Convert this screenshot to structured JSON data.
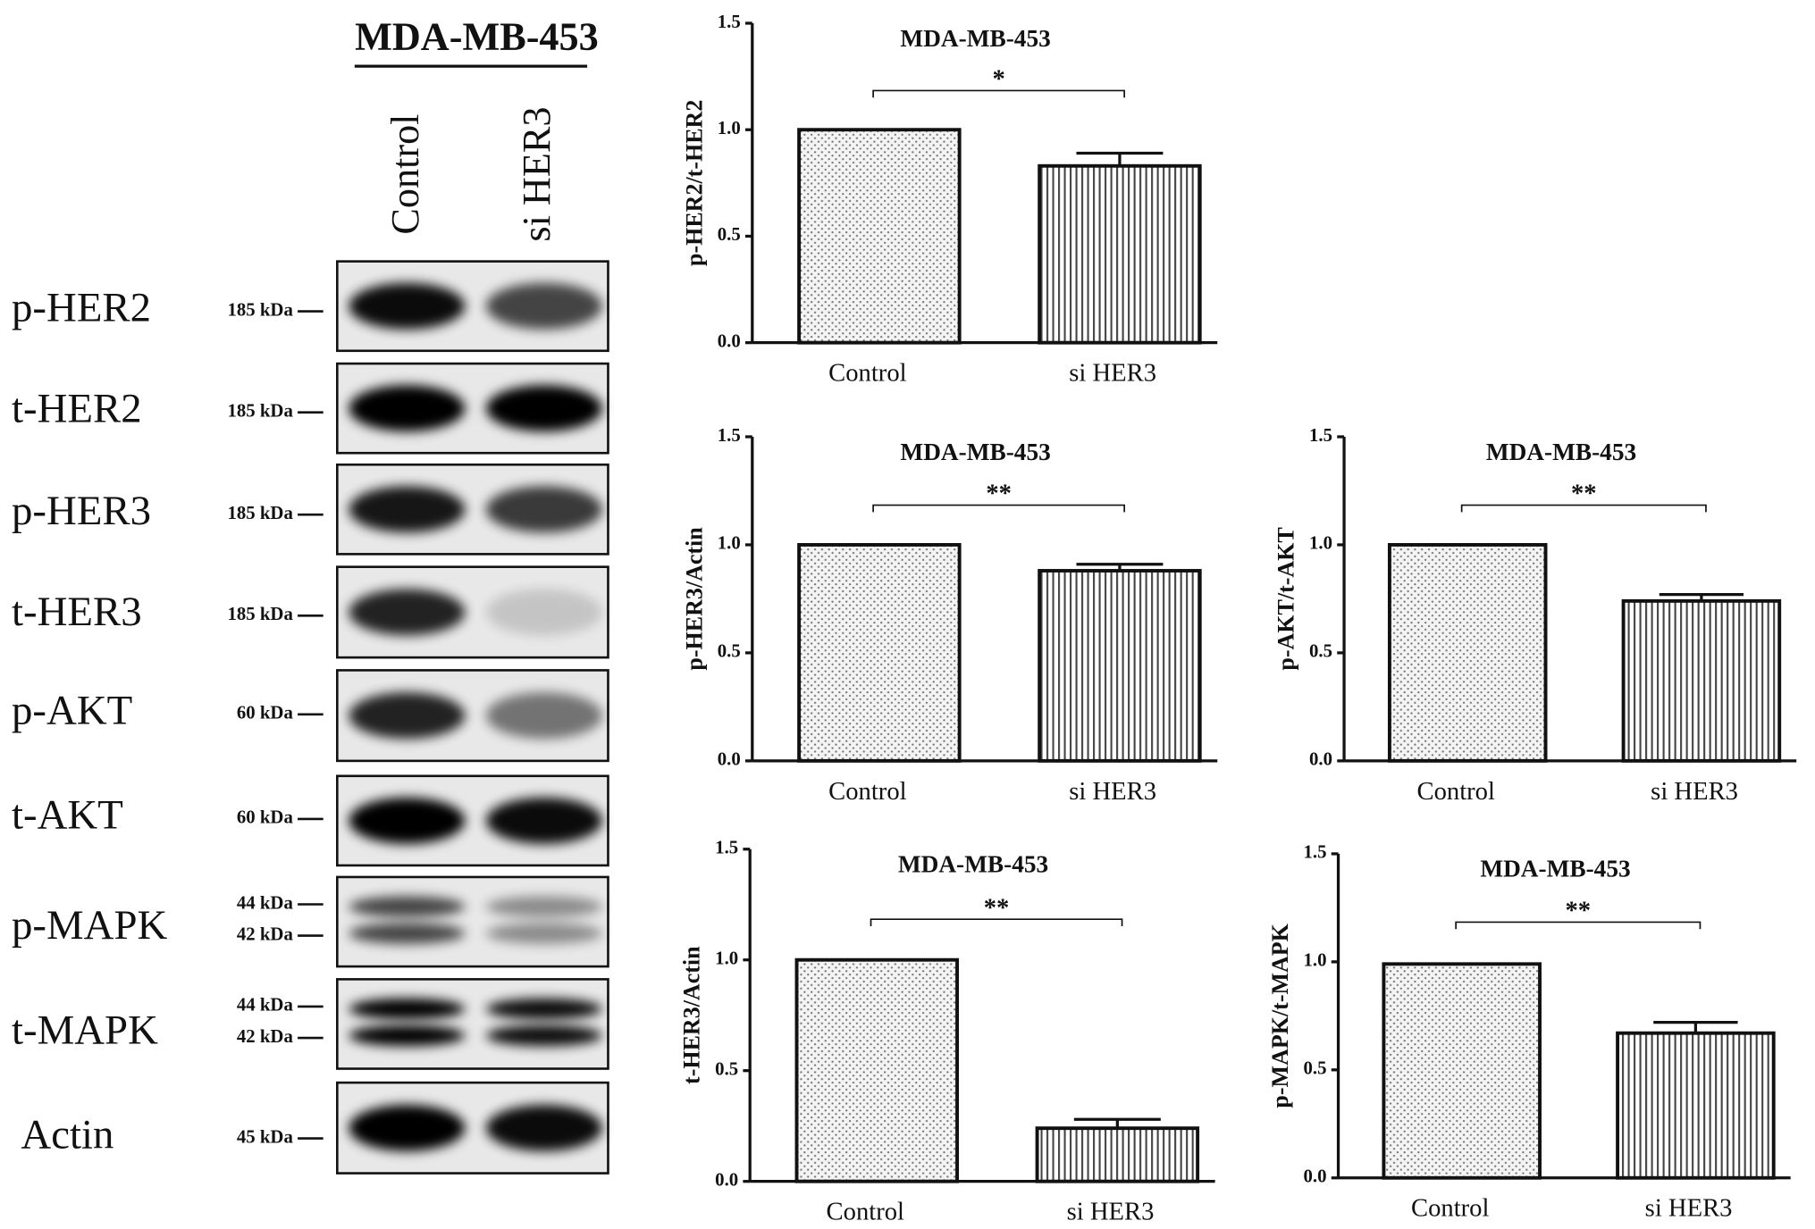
{
  "blot": {
    "title": "MDA-MB-453",
    "lanes": [
      "Control",
      "si HER3"
    ],
    "rows": [
      {
        "label": "p-HER2",
        "kda": [
          "185 kDa"
        ]
      },
      {
        "label": "t-HER2",
        "kda": [
          "185 kDa"
        ]
      },
      {
        "label": "p-HER3",
        "kda": [
          "185 kDa"
        ]
      },
      {
        "label": "t-HER3",
        "kda": [
          "185 kDa"
        ]
      },
      {
        "label": "p-AKT",
        "kda": [
          "60 kDa"
        ]
      },
      {
        "label": "t-AKT",
        "kda": [
          "60 kDa"
        ]
      },
      {
        "label": "p-MAPK",
        "kda": [
          "44 kDa",
          "42 kDa"
        ]
      },
      {
        "label": "t-MAPK",
        "kda": [
          "44 kDa",
          "42 kDa"
        ]
      },
      {
        "label": "Actin",
        "kda": [
          "45 kDa"
        ]
      }
    ]
  },
  "chart_data": [
    {
      "type": "bar",
      "title": "MDA-MB-453",
      "y_label": "p-HER2/t-HER2",
      "categories": [
        "Control",
        "si HER3"
      ],
      "values": [
        1.0,
        0.83
      ],
      "errors": [
        0,
        0.06
      ],
      "significance": "*",
      "bar_patterns": [
        "dots",
        "vertical-lines"
      ],
      "ylim": [
        0,
        1.5
      ],
      "yticks": [
        {
          "value": 0,
          "label": "0.0"
        },
        {
          "value": 0.5,
          "label": "0.5"
        },
        {
          "value": 1,
          "label": "1.0"
        },
        {
          "value": 1.5,
          "label": "1.5"
        }
      ]
    },
    {
      "type": "bar",
      "title": "MDA-MB-453",
      "y_label": "p-HER3/Actin",
      "categories": [
        "Control",
        "si HER3"
      ],
      "values": [
        1.0,
        0.88
      ],
      "errors": [
        0,
        0.03
      ],
      "significance": "**",
      "bar_patterns": [
        "dots",
        "vertical-lines"
      ],
      "ylim": [
        0,
        1.5
      ],
      "yticks": [
        {
          "value": 0,
          "label": "0.0"
        },
        {
          "value": 0.5,
          "label": "0.5"
        },
        {
          "value": 1,
          "label": "1.0"
        },
        {
          "value": 1.5,
          "label": "1.5"
        }
      ]
    },
    {
      "type": "bar",
      "title": "MDA-MB-453",
      "y_label": "p-AKT/t-AKT",
      "categories": [
        "Control",
        "si HER3"
      ],
      "values": [
        1.0,
        0.74
      ],
      "errors": [
        0,
        0.03
      ],
      "significance": "**",
      "bar_patterns": [
        "dots",
        "vertical-lines"
      ],
      "ylim": [
        0,
        1.5
      ],
      "yticks": [
        {
          "value": 0,
          "label": "0.0"
        },
        {
          "value": 0.5,
          "label": "0.5"
        },
        {
          "value": 1,
          "label": "1.0"
        },
        {
          "value": 1.5,
          "label": "1.5"
        }
      ]
    },
    {
      "type": "bar",
      "title": "MDA-MB-453",
      "y_label": "t-HER3/Actin",
      "categories": [
        "Control",
        "si HER3"
      ],
      "values": [
        1.0,
        0.24
      ],
      "errors": [
        0,
        0.04
      ],
      "significance": "**",
      "bar_patterns": [
        "dots",
        "vertical-lines"
      ],
      "ylim": [
        0,
        1.5
      ],
      "yticks": [
        {
          "value": 0,
          "label": "0.0"
        },
        {
          "value": 0.5,
          "label": "0.5"
        },
        {
          "value": 1,
          "label": "1.0"
        },
        {
          "value": 1.5,
          "label": "1.5"
        }
      ]
    },
    {
      "type": "bar",
      "title": "MDA-MB-453",
      "y_label": "p-MAPK/t-MAPK",
      "categories": [
        "Control",
        "si HER3"
      ],
      "values": [
        0.99,
        0.67
      ],
      "errors": [
        0,
        0.05
      ],
      "significance": "**",
      "bar_patterns": [
        "dots",
        "vertical-lines"
      ],
      "ylim": [
        0,
        1.5
      ],
      "yticks": [
        {
          "value": 0,
          "label": "0.0"
        },
        {
          "value": 0.5,
          "label": "0.5"
        },
        {
          "value": 1,
          "label": "1.0"
        },
        {
          "value": 1.5,
          "label": "1.5"
        }
      ]
    }
  ]
}
